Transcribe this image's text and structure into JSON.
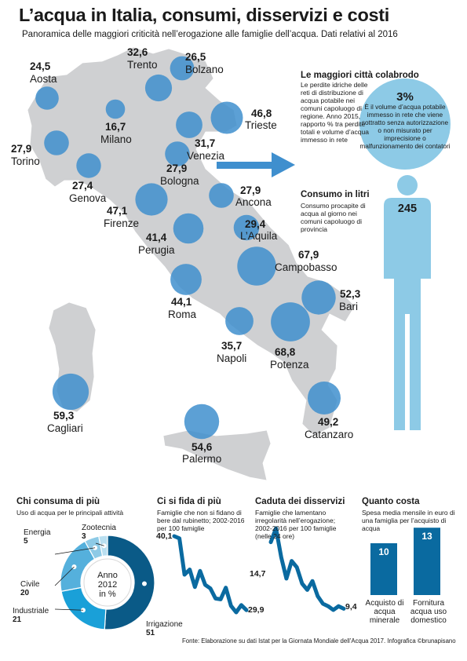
{
  "title": "L’acqua in Italia, consumi, disservizi e costi",
  "subtitle": "Panoramica delle maggiori criticità nell’erogazione alle famiglie dell’acqua. Dati relativi al 2016",
  "colors": {
    "map": "#cfd0d2",
    "bubble": "#3f8fce",
    "light": "#8dcae6",
    "person": "#8dcae6",
    "dark": "#0a5a87"
  },
  "chart_data": [
    {
      "type": "scatter",
      "title": "",
      "cities": [
        {
          "name": "Aosta",
          "value": "24,5"
        },
        {
          "name": "Trento",
          "value": "32,6"
        },
        {
          "name": "Bolzano",
          "value": "26,5"
        },
        {
          "name": "Milano",
          "value": "16,7"
        },
        {
          "name": "Trieste",
          "value": "46,8"
        },
        {
          "name": "Torino",
          "value": "27,9"
        },
        {
          "name": "Venezia",
          "value": "31,7"
        },
        {
          "name": "Bologna",
          "value": "27,9"
        },
        {
          "name": "Genova",
          "value": "27,4"
        },
        {
          "name": "Ancona",
          "value": "27,9"
        },
        {
          "name": "Firenze",
          "value": "47,1"
        },
        {
          "name": "L’Aquila",
          "value": "29,4"
        },
        {
          "name": "Perugia",
          "value": "41,4"
        },
        {
          "name": "Campobasso",
          "value": "67,9"
        },
        {
          "name": "Bari",
          "value": "52,3"
        },
        {
          "name": "Roma",
          "value": "44,1"
        },
        {
          "name": "Napoli",
          "value": "35,7"
        },
        {
          "name": "Potenza",
          "value": "68,8"
        },
        {
          "name": "Cagliari",
          "value": "59,3"
        },
        {
          "name": "Catanzaro",
          "value": "49,2"
        },
        {
          "name": "Palermo",
          "value": "54,6"
        }
      ]
    },
    {
      "type": "pie",
      "title": "Chi consuma di più",
      "subtitle": "Uso di acqua per le principali attività",
      "center_label": [
        "Anno",
        "2012",
        "in %"
      ],
      "slices": [
        {
          "label": "Irrigazione",
          "value": 51
        },
        {
          "label": "Industriale",
          "value": 21
        },
        {
          "label": "Civile",
          "value": 20
        },
        {
          "label": "Energia",
          "value": 5
        },
        {
          "label": "Zootecnia",
          "value": 3
        }
      ]
    },
    {
      "type": "line",
      "title": "Ci si fida di più",
      "subtitle": "Famiglie che non si fidano di bere dal rubinetto; 2002-2016 per 100 famiglie",
      "x": [
        2002,
        2003,
        2004,
        2005,
        2006,
        2007,
        2008,
        2009,
        2010,
        2011,
        2012,
        2013,
        2014,
        2015,
        2016
      ],
      "values": [
        40.1,
        39.8,
        34.8,
        35.5,
        33.1,
        35.3,
        33.4,
        32.9,
        31.5,
        31.4,
        33.0,
        30.5,
        29.6,
        30.6,
        29.9
      ],
      "start_label": "40,1",
      "end_label": "29,9"
    },
    {
      "type": "line",
      "title": "Caduta dei disservizi",
      "subtitle": "Famiglie che lamentano irregolarità nell’erogazione; 2002-2016 per 100 famiglie (nelle 24 ore)",
      "x": [
        2002,
        2003,
        2004,
        2005,
        2006,
        2007,
        2008,
        2009,
        2010,
        2011,
        2012,
        2013,
        2014,
        2015,
        2016
      ],
      "values": [
        14.7,
        15.8,
        13.5,
        11.8,
        13.2,
        12.7,
        11.4,
        10.9,
        11.6,
        10.4,
        9.8,
        9.6,
        9.3,
        9.6,
        9.4
      ],
      "start_label": "14,7",
      "end_label": "9,4"
    },
    {
      "type": "bar",
      "title": "Quanto costa",
      "subtitle": "Spesa media mensile in euro di una famiglia per l’acquisto di acqua",
      "categories": [
        "Acquisto di acqua minerale",
        "Fornitura acqua uso domestico"
      ],
      "values": [
        10,
        13
      ]
    }
  ],
  "leaks": {
    "heading": "Le maggiori città colabrodo",
    "text": "Le perdite idriche delle reti di distribuzione di acqua potabile nei comuni capoluogo di regione. Anno 2015, rapporto % tra perdite totali e volume d’acqua immesso in rete",
    "unbilled_value": "3%",
    "unbilled_note": "È il volume d’acqua potabile immesso in rete che viene sottratto senza autorizzazione o non misurato per imprecisione o malfunzionamento dei contatori"
  },
  "liters": {
    "heading": "Consumo in litri",
    "text": "Consumo procapite di acqua al giorno nei comuni capoluogo di provincia",
    "value": "245"
  },
  "source": "Fonte: Elaborazione su dati Istat per la Giornata Mondiale dell’Acqua 2017. Infografica ©brunapisano"
}
